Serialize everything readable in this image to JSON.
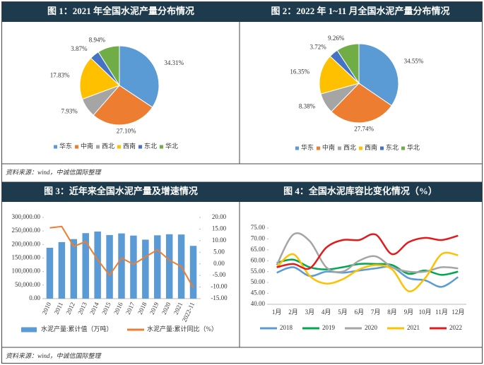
{
  "chart_data": [
    {
      "type": "pie",
      "title": "图 1：2021 年全国水泥产量分布情况",
      "categories": [
        "华东",
        "中南",
        "西北",
        "西南",
        "东北",
        "华北"
      ],
      "values": [
        34.31,
        27.1,
        7.93,
        17.83,
        3.87,
        8.94
      ],
      "value_labels": [
        "34.31%",
        "27.10%",
        "7.93%",
        "17.83%",
        "3.87%",
        "8.94%"
      ],
      "colors": [
        "#5b9bd5",
        "#ed7d31",
        "#a5a5a5",
        "#ffc000",
        "#4472c4",
        "#70ad47"
      ]
    },
    {
      "type": "pie",
      "title": "图 2：2022 年 1~11 月全国水泥产量分布情况",
      "categories": [
        "华东",
        "中南",
        "西北",
        "西南",
        "东北",
        "华北"
      ],
      "values": [
        34.55,
        27.74,
        8.38,
        16.35,
        3.72,
        9.26
      ],
      "value_labels": [
        "34.55%",
        "27.74%",
        "8.38%",
        "16.35%",
        "3.72%",
        "9.26%"
      ],
      "colors": [
        "#5b9bd5",
        "#ed7d31",
        "#a5a5a5",
        "#ffc000",
        "#4472c4",
        "#70ad47"
      ]
    },
    {
      "type": "bar",
      "title": "图 3：近年来全国水泥产量及增速情况",
      "categories": [
        "2010",
        "2011",
        "2012",
        "2013",
        "2014",
        "2015",
        "2016",
        "2017",
        "2018",
        "2019",
        "2020",
        "2021",
        "2022-11"
      ],
      "series": [
        {
          "name": "水泥产量:累计值（万吨）",
          "color": "#5b9bd5",
          "type": "bar",
          "values": [
            188000,
            209000,
            220000,
            242000,
            248000,
            235000,
            241000,
            233000,
            218000,
            234000,
            238000,
            237000,
            195000
          ]
        },
        {
          "name": "水泥产量:累计同比（%）",
          "color": "#ed7d31",
          "type": "line",
          "axis": "y2",
          "values": [
            15.5,
            16.1,
            7.5,
            9.6,
            1.8,
            -4.9,
            2.5,
            -0.2,
            3.0,
            6.1,
            1.6,
            -1.2,
            -10.3
          ]
        }
      ],
      "ylim": [
        0,
        300000
      ],
      "yticks": [
        {
          "value": 0,
          "label": "0.00"
        },
        {
          "value": 50000,
          "label": "50,000.00"
        },
        {
          "value": 100000,
          "label": "100,000.00"
        },
        {
          "value": 150000,
          "label": "150,000.00"
        },
        {
          "value": 200000,
          "label": "200,000.00"
        },
        {
          "value": 250000,
          "label": "250,000.00"
        },
        {
          "value": 300000,
          "label": "300,000.00"
        }
      ],
      "y2lim": [
        -15,
        20
      ],
      "y2ticks": [
        {
          "value": -15,
          "label": "-15.00"
        },
        {
          "value": -10,
          "label": "-10.00"
        },
        {
          "value": -5,
          "label": "-5.00"
        },
        {
          "value": 0,
          "label": "0.00"
        },
        {
          "value": 5,
          "label": "5.00"
        },
        {
          "value": 10,
          "label": "10.00"
        },
        {
          "value": 15,
          "label": "15.00"
        },
        {
          "value": 20,
          "label": "20.00"
        }
      ]
    },
    {
      "type": "line",
      "title": "图 4：全国水泥库容比变化情况（%）",
      "categories": [
        "1月",
        "2月",
        "3月",
        "4月",
        "5月",
        "6月",
        "7月",
        "8月",
        "9月",
        "10月",
        "11月",
        "12月"
      ],
      "series": [
        {
          "name": "2018",
          "color": "#5b9bd5",
          "values": [
            54.5,
            57,
            53,
            55,
            54.5,
            55.5,
            56.5,
            57,
            52,
            51,
            48,
            52.5
          ]
        },
        {
          "name": "2019",
          "color": "#00a650",
          "values": [
            59,
            60.5,
            57,
            56,
            57,
            58.5,
            58.5,
            58,
            54,
            55.5,
            53.5,
            55
          ]
        },
        {
          "name": "2020",
          "color": "#a5a5a5",
          "values": [
            58,
            72,
            69,
            57,
            55,
            60,
            62,
            57,
            55,
            55,
            57,
            56.5
          ]
        },
        {
          "name": "2021",
          "color": "#ffc000",
          "values": [
            57,
            63,
            53,
            49.5,
            51.5,
            56,
            58,
            56,
            46,
            52,
            63,
            62.5
          ]
        },
        {
          "name": "2022",
          "color": "#e31a1c",
          "values": [
            57,
            58.5,
            56.5,
            66,
            69.5,
            69.5,
            72,
            63,
            68.5,
            70.5,
            69.5,
            71.5
          ]
        }
      ],
      "ylim": [
        40,
        75
      ],
      "yticks": [
        {
          "value": 40,
          "label": "40.00"
        },
        {
          "value": 45,
          "label": "45.00"
        },
        {
          "value": 50,
          "label": "50.00"
        },
        {
          "value": 55,
          "label": "55.00"
        },
        {
          "value": 60,
          "label": "60.00"
        },
        {
          "value": 65,
          "label": "65.00"
        },
        {
          "value": 70,
          "label": "70.00"
        },
        {
          "value": 75,
          "label": "75.00"
        }
      ]
    }
  ],
  "source_notes": [
    "资料来源：wind，中诚信国际整理",
    "资料来源：wind，中诚信国际整理"
  ]
}
